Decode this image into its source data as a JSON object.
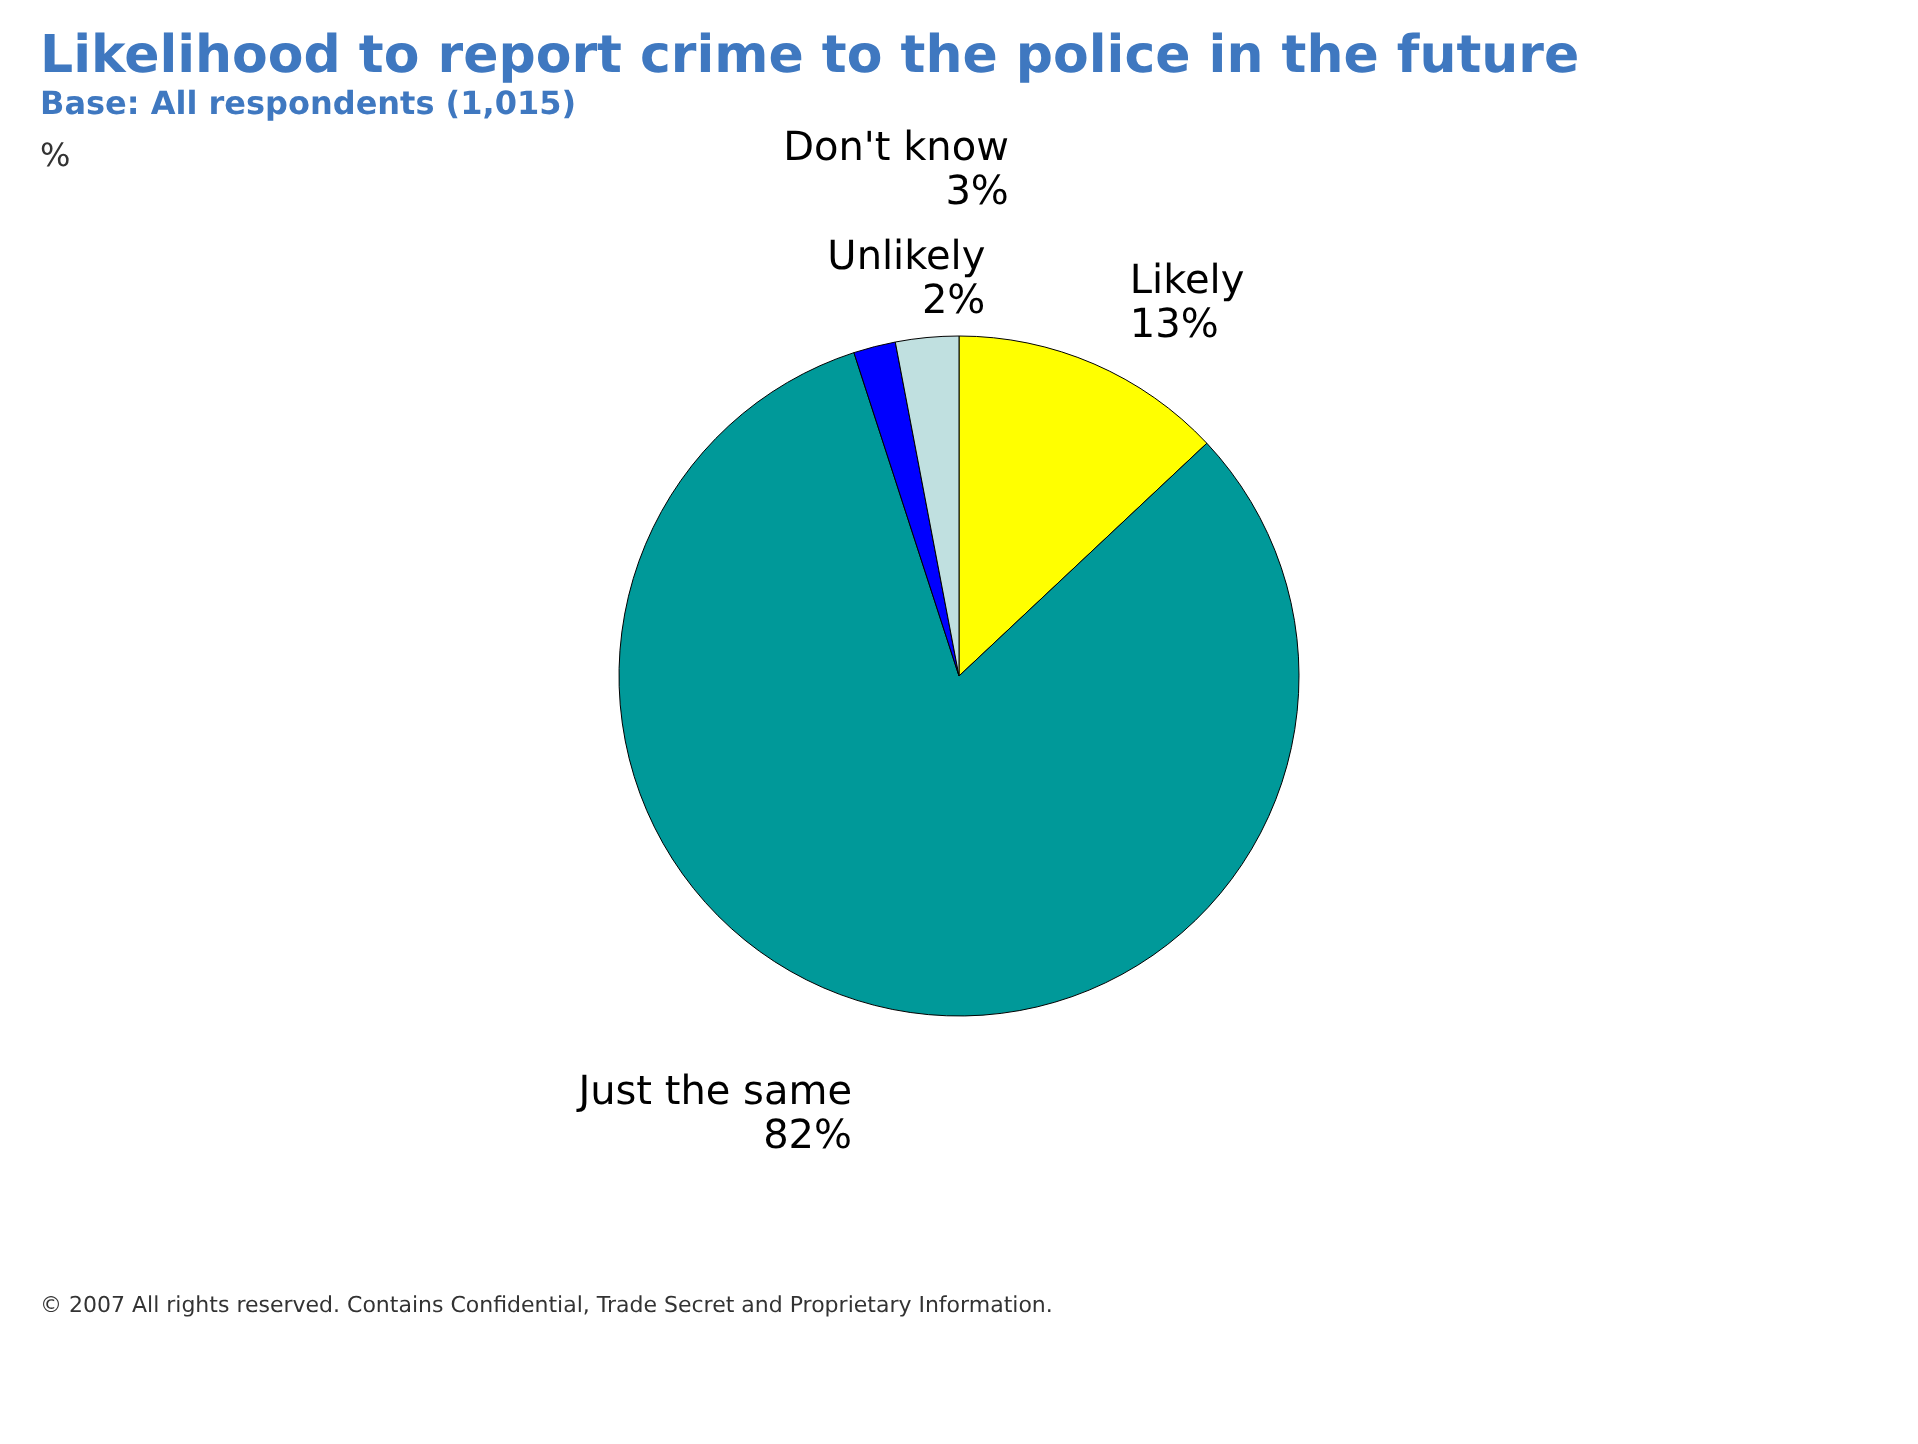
{
  "chart_data": {
    "type": "pie",
    "title": "Likelihood to report crime to the police in the future",
    "subtitle": "Base:  All respondents (1,015)",
    "categories": [
      "Likely",
      "Just the same",
      "Unlikely",
      "Don't know"
    ],
    "values": [
      13,
      82,
      2,
      3
    ],
    "value_labels": [
      "13%",
      "82%",
      "2%",
      "3%"
    ],
    "colors": [
      "#ffff00",
      "#009999",
      "#0000ff",
      "#c0e0e0"
    ],
    "legend": false,
    "annotations": [
      "%",
      "© 2007 All rights reserved.  Contains Confidential, Trade Secret and Proprietary Information."
    ]
  }
}
